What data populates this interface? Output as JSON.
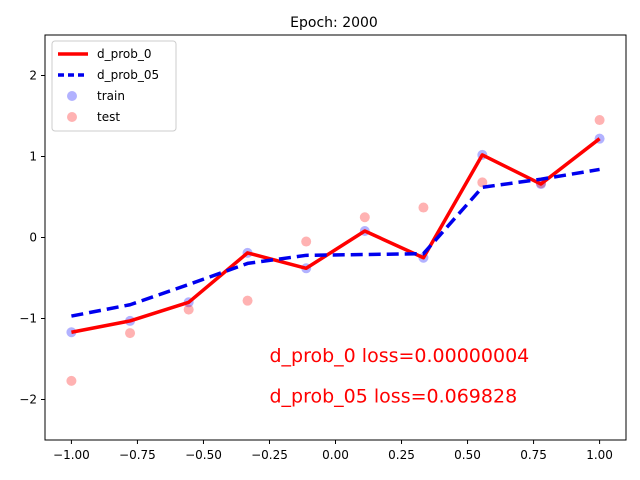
{
  "chart_data": {
    "type": "line",
    "title": "Epoch: 2000",
    "xlabel": "",
    "ylabel": "",
    "xlim": [
      -1.1,
      1.1
    ],
    "ylim": [
      -2.5,
      2.5
    ],
    "x_ticks": [
      "−1.00",
      "−0.75",
      "−0.50",
      "−0.25",
      "0.00",
      "0.25",
      "0.50",
      "0.75",
      "1.00"
    ],
    "x_tick_values": [
      -1.0,
      -0.75,
      -0.5,
      -0.25,
      0.0,
      0.25,
      0.5,
      0.75,
      1.0
    ],
    "y_ticks": [
      "−2",
      "−1",
      "0",
      "1",
      "2"
    ],
    "y_tick_values": [
      -2,
      -1,
      0,
      1,
      2
    ],
    "grid": false,
    "legend_position": "top-left",
    "series": [
      {
        "name": "d_prob_0",
        "kind": "line",
        "style": "solid",
        "color": "#ff0000",
        "x": [
          -1.0,
          -0.778,
          -0.556,
          -0.333,
          -0.111,
          0.111,
          0.333,
          0.556,
          0.778,
          1.0
        ],
        "y": [
          -1.17,
          -1.03,
          -0.8,
          -0.19,
          -0.38,
          0.08,
          -0.25,
          1.02,
          0.66,
          1.22
        ]
      },
      {
        "name": "d_prob_05",
        "kind": "line",
        "style": "dashed",
        "color": "#0000ee",
        "x": [
          -1.0,
          -0.778,
          -0.556,
          -0.333,
          -0.111,
          0.111,
          0.333,
          0.556,
          0.778,
          1.0
        ],
        "y": [
          -0.97,
          -0.83,
          -0.58,
          -0.32,
          -0.22,
          -0.21,
          -0.2,
          0.62,
          0.72,
          0.84
        ]
      },
      {
        "name": "train",
        "kind": "scatter",
        "color": "#0000ff",
        "x": [
          -1.0,
          -0.778,
          -0.556,
          -0.333,
          -0.111,
          0.111,
          0.333,
          0.556,
          0.778,
          1.0
        ],
        "y": [
          -1.17,
          -1.03,
          -0.8,
          -0.19,
          -0.38,
          0.08,
          -0.25,
          1.02,
          0.66,
          1.22
        ]
      },
      {
        "name": "test",
        "kind": "scatter",
        "color": "#ff0000",
        "x": [
          -1.0,
          -0.778,
          -0.556,
          -0.333,
          -0.111,
          0.111,
          0.333,
          0.556,
          0.778,
          1.0
        ],
        "y": [
          -1.77,
          -1.18,
          -0.89,
          -0.78,
          -0.05,
          0.25,
          0.37,
          0.68,
          0.67,
          1.45
        ]
      }
    ],
    "annotations": [
      {
        "text": "d_prob_0 loss=0.00000004",
        "x": -0.25,
        "y": -1.45,
        "color": "#ff0000"
      },
      {
        "text": "d_prob_05 loss=0.069828",
        "x": -0.25,
        "y": -1.95,
        "color": "#ff0000"
      }
    ]
  }
}
